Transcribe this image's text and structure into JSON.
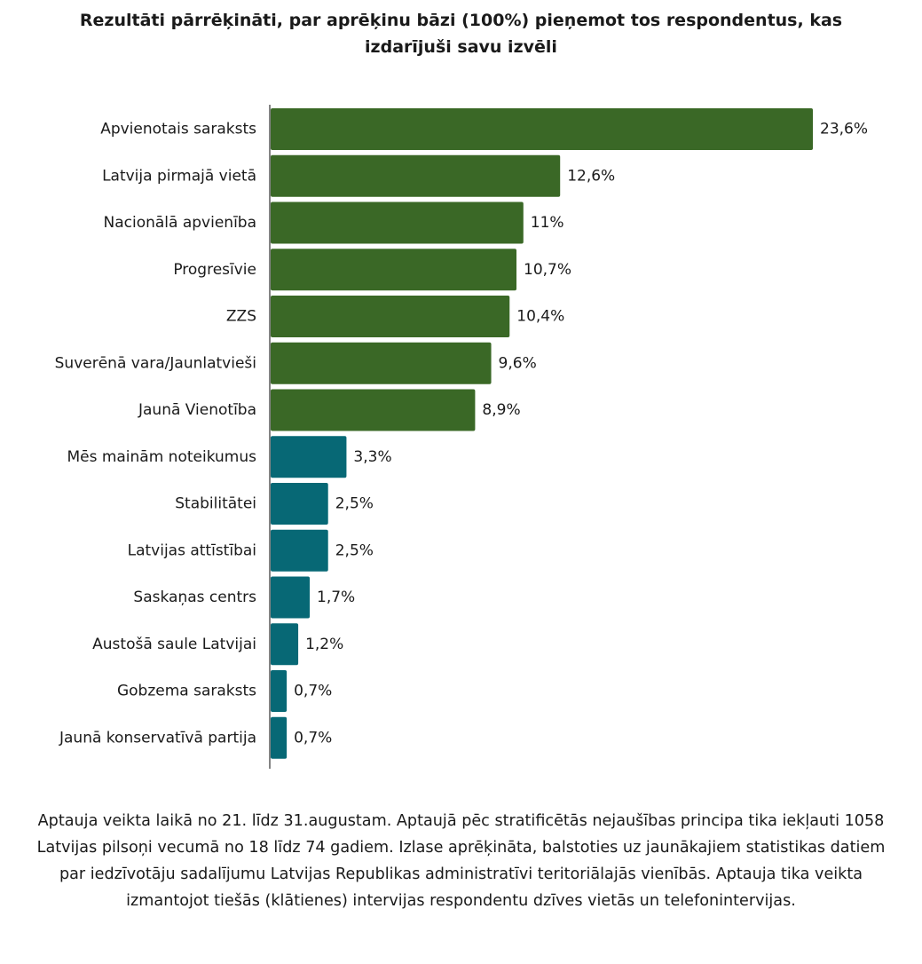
{
  "chart_data": {
    "type": "bar",
    "orientation": "horizontal",
    "title": "Rezultāti pārrēķināti, par aprēķinu bāzi (100%) pieņemot tos respondentus, kas izdarījuši savu izvēli",
    "categories": [
      "Apvienotais saraksts",
      "Latvija pirmajā vietā",
      "Nacionālā apvienība",
      "Progresīvie",
      "ZZS",
      "Suverēnā vara/Jaunlatvieši",
      "Jaunā Vienotība",
      "Mēs mainām noteikumus",
      "Stabilitātei",
      "Latvijas attīstībai",
      "Saskaņas centrs",
      "Austošā saule Latvijai",
      "Gobzema saraksts",
      "Jaunā konservatīvā partija"
    ],
    "values": [
      23.6,
      12.6,
      11,
      10.7,
      10.4,
      9.6,
      8.9,
      3.3,
      2.5,
      2.5,
      1.7,
      1.2,
      0.7,
      0.7
    ],
    "value_labels": [
      "23,6%",
      "12,6%",
      "11%",
      "10,7%",
      "10,4%",
      "9,6%",
      "8,9%",
      "3,3%",
      "2,5%",
      "2,5%",
      "1,7%",
      "1,2%",
      "0,7%",
      "0,7%"
    ],
    "bar_colors": [
      "#3a6826",
      "#3a6826",
      "#3a6826",
      "#3a6826",
      "#3a6826",
      "#3a6826",
      "#3a6826",
      "#076875",
      "#076875",
      "#076875",
      "#076875",
      "#076875",
      "#076875",
      "#076875"
    ],
    "xlim": [
      0,
      23.6
    ],
    "grid": false,
    "legend": "none"
  },
  "footnote": "Aptauja veikta laikā no 21. līdz 31.augustam. Aptaujā pēc stratificētās nejaušības principa tika iekļauti 1058 Latvijas pilsoņi vecumā no 18 līdz 74 gadiem.  Izlase aprēķināta, balstoties uz jaunākajiem statistikas datiem par iedzīvotāju sadalījumu Latvijas Republikas administratīvi teritoriālajās vienībās. Aptauja tika veikta izmantojot tiešās (klātienes) intervijas respondentu dzīves vietās un telefonintervijas.",
  "colors": {
    "axis": "#333333",
    "text": "#1a1a1a"
  }
}
